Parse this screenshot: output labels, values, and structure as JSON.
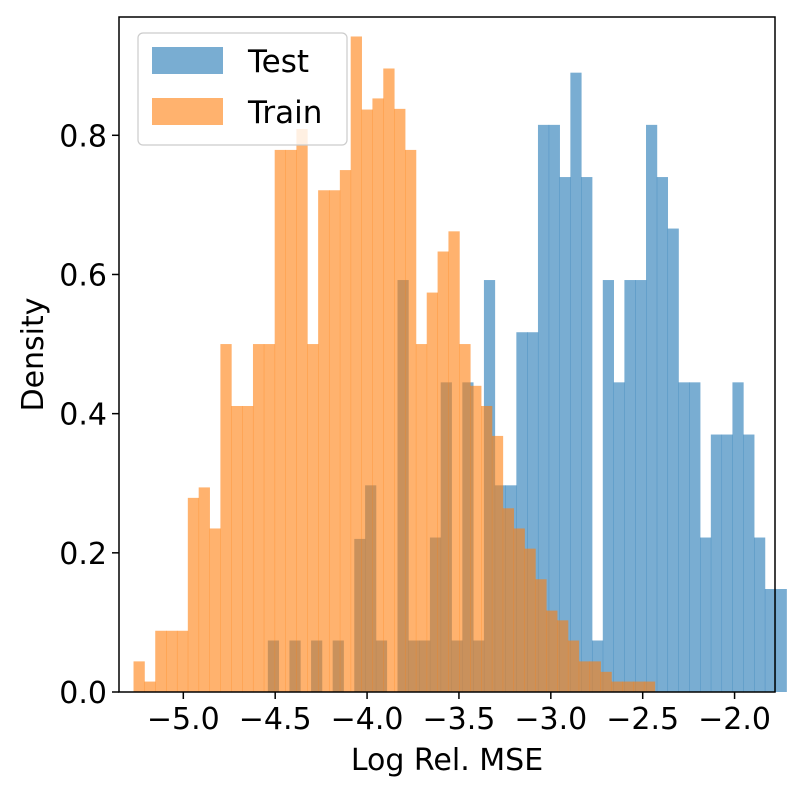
{
  "chart_data": {
    "type": "bar",
    "histogram": true,
    "xlabel": "Log Rel. MSE",
    "ylabel": "Density",
    "xlim": [
      -5.35,
      -1.78
    ],
    "ylim": [
      0,
      0.97
    ],
    "xticks": [
      -5.0,
      -4.5,
      -4.0,
      -3.5,
      -3.0,
      -2.5,
      -2.0
    ],
    "xtick_labels": [
      "−5.0",
      "−4.5",
      "−4.0",
      "−3.5",
      "−3.0",
      "−2.5",
      "−2.0"
    ],
    "yticks": [
      0.0,
      0.2,
      0.4,
      0.6,
      0.8
    ],
    "ytick_labels": [
      "0.0",
      "0.2",
      "0.4",
      "0.6",
      "0.8"
    ],
    "grid": false,
    "legend": {
      "position": "top-left"
    },
    "series": [
      {
        "name": "Test",
        "color": "#1f77b4",
        "alpha": 0.6,
        "bin_start": -4.54,
        "bin_width": 0.0588,
        "values": [
          0.074,
          0,
          0.074,
          0,
          0.074,
          0,
          0.074,
          0,
          0.22,
          0.297,
          0.074,
          0,
          0.592,
          0.074,
          0.074,
          0.222,
          0.445,
          0.074,
          0.445,
          0.074,
          0.592,
          0.297,
          0.297,
          0.517,
          0.517,
          0.815,
          0.815,
          0.74,
          0.89,
          0.74,
          0.074,
          0.592,
          0.445,
          0.592,
          0.592,
          0.815,
          0.74,
          0.666,
          0.445,
          0.445,
          0.222,
          0.37,
          0.37,
          0.445,
          0.37,
          0.222,
          0.148,
          0.148
        ]
      },
      {
        "name": "Train",
        "color": "#ff7f0e",
        "alpha": 0.6,
        "bin_start": -5.271,
        "bin_width": 0.0591,
        "values": [
          0.044,
          0.015,
          0.088,
          0.088,
          0.088,
          0.279,
          0.294,
          0.235,
          0.5,
          0.411,
          0.411,
          0.5,
          0.5,
          0.779,
          0.779,
          0.809,
          0.5,
          0.721,
          0.721,
          0.75,
          0.942,
          0.837,
          0.853,
          0.896,
          0.838,
          0.779,
          0.5,
          0.574,
          0.633,
          0.662,
          0.5,
          0.44,
          0.411,
          0.368,
          0.264,
          0.235,
          0.206,
          0.162,
          0.117,
          0.103,
          0.074,
          0.044,
          0.044,
          0.029,
          0.015,
          0.015,
          0.015,
          0.015
        ]
      }
    ]
  }
}
